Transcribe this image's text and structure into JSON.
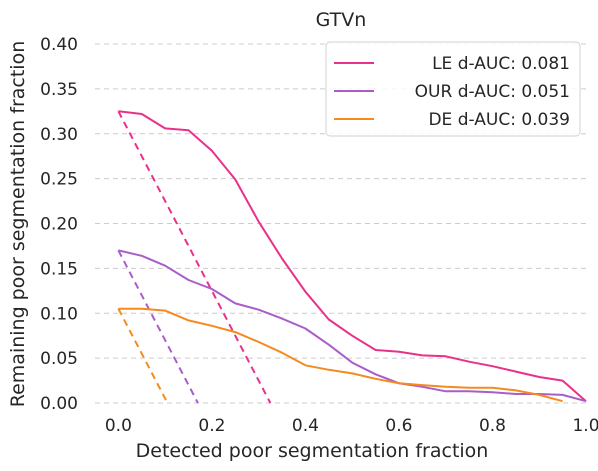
{
  "chart_data": {
    "type": "line",
    "title": "GTVn",
    "xlabel": "Detected poor segmentation fraction",
    "ylabel": "Remaining poor segmentation fraction",
    "xlim": [
      -0.05,
      1.0
    ],
    "ylim": [
      0.0,
      0.4
    ],
    "xticks": [
      0.0,
      0.2,
      0.4,
      0.6,
      0.8,
      1.0
    ],
    "xtick_labels": [
      "0.0",
      "0.2",
      "0.4",
      "0.6",
      "0.8",
      "1.0"
    ],
    "yticks": [
      0.0,
      0.05,
      0.1,
      0.15,
      0.2,
      0.25,
      0.3,
      0.35,
      0.4
    ],
    "ytick_labels": [
      "0.00",
      "0.05",
      "0.10",
      "0.15",
      "0.20",
      "0.25",
      "0.30",
      "0.35",
      "0.40"
    ],
    "grid": "y-dashed",
    "legend_position": "top-right",
    "series": [
      {
        "name": "LE d-AUC: 0.081",
        "color": "#e8318a",
        "x": [
          0.0,
          0.05,
          0.1,
          0.15,
          0.2,
          0.25,
          0.3,
          0.35,
          0.4,
          0.45,
          0.5,
          0.55,
          0.6,
          0.65,
          0.7,
          0.75,
          0.8,
          0.85,
          0.9,
          0.95,
          1.0
        ],
        "y": [
          0.325,
          0.322,
          0.306,
          0.304,
          0.281,
          0.249,
          0.202,
          0.161,
          0.124,
          0.093,
          0.075,
          0.059,
          0.057,
          0.053,
          0.052,
          0.046,
          0.041,
          0.035,
          0.029,
          0.025,
          0.002
        ]
      },
      {
        "name": "OUR d-AUC: 0.051",
        "color": "#a95dc9",
        "x": [
          0.0,
          0.05,
          0.1,
          0.15,
          0.2,
          0.25,
          0.3,
          0.35,
          0.4,
          0.45,
          0.5,
          0.55,
          0.6,
          0.65,
          0.7,
          0.75,
          0.8,
          0.85,
          0.9,
          0.95,
          1.0
        ],
        "y": [
          0.17,
          0.164,
          0.153,
          0.137,
          0.127,
          0.111,
          0.104,
          0.094,
          0.083,
          0.065,
          0.045,
          0.032,
          0.022,
          0.018,
          0.013,
          0.013,
          0.012,
          0.01,
          0.01,
          0.009,
          0.002
        ]
      },
      {
        "name": "DE d-AUC: 0.039",
        "color": "#f58a1f",
        "x": [
          0.0,
          0.05,
          0.1,
          0.15,
          0.2,
          0.25,
          0.3,
          0.35,
          0.4,
          0.45,
          0.5,
          0.55,
          0.6,
          0.65,
          0.7,
          0.75,
          0.8,
          0.85,
          0.9,
          0.95
        ],
        "y": [
          0.105,
          0.105,
          0.103,
          0.092,
          0.086,
          0.079,
          0.068,
          0.056,
          0.042,
          0.037,
          0.033,
          0.027,
          0.022,
          0.02,
          0.018,
          0.017,
          0.017,
          0.014,
          0.009,
          0.002
        ]
      }
    ],
    "reference_lines": [
      {
        "color": "#e8318a",
        "x": [
          0.0,
          0.325
        ],
        "y": [
          0.325,
          0.0
        ]
      },
      {
        "color": "#a95dc9",
        "x": [
          0.0,
          0.17
        ],
        "y": [
          0.17,
          0.0
        ]
      },
      {
        "color": "#f58a1f",
        "x": [
          0.0,
          0.105
        ],
        "y": [
          0.105,
          0.0
        ]
      }
    ]
  }
}
